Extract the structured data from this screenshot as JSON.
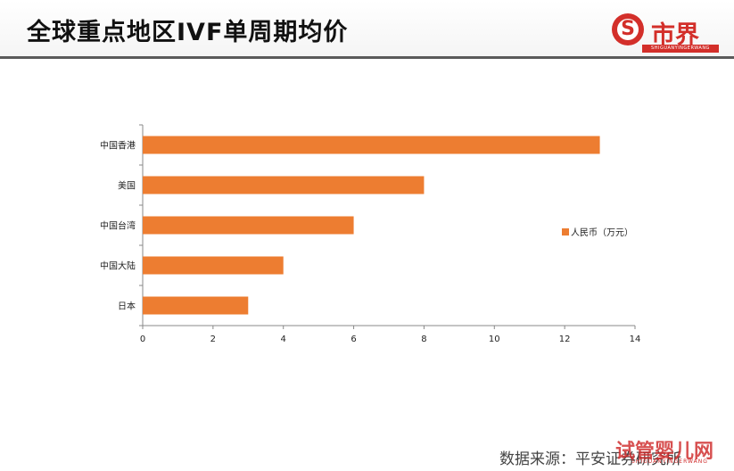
{
  "header": {
    "title": "全球重点地区IVF单周期均价"
  },
  "logo": {
    "mark": "S",
    "text": "市界",
    "sub": "SHIGUANYINGERWANG"
  },
  "chart_data": {
    "type": "bar",
    "orientation": "horizontal",
    "categories": [
      "中国香港",
      "美国",
      "中国台湾",
      "中国大陆",
      "日本"
    ],
    "series": [
      {
        "name": "人民币（万元）",
        "values": [
          13,
          8,
          6,
          4,
          3
        ]
      }
    ],
    "xlim": [
      0,
      14
    ],
    "xticks": [
      0,
      2,
      4,
      6,
      8,
      10,
      12,
      14
    ],
    "grid": false,
    "legend": "right",
    "color": "#ed7d31"
  },
  "footer": {
    "source": "数据来源：平安证券研究所"
  },
  "watermark": {
    "text": "试管婴儿网",
    "sub": "SHIGUANYINGERWANG"
  }
}
